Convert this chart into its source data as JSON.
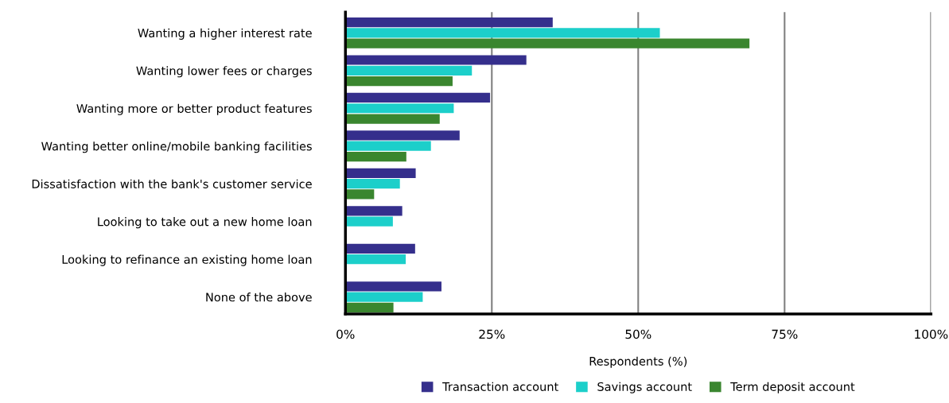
{
  "chart_data": {
    "type": "bar",
    "orientation": "horizontal",
    "xlabel": "Respondents (%)",
    "categories": [
      "Wanting a higher interest rate",
      "Wanting lower fees or charges",
      "Wanting more or better product features",
      "Wanting better online/mobile banking facilities",
      "Dissatisfaction with the bank's customer service",
      "Looking to take out a new home loan",
      "Looking to refinance an existing home loan",
      "None of the above"
    ],
    "series": [
      {
        "name": "Transaction account",
        "color": "#352f8c",
        "values": [
          35.4,
          30.9,
          24.7,
          19.5,
          12.0,
          9.7,
          11.9,
          16.4
        ]
      },
      {
        "name": "Savings account",
        "color": "#1ccfca",
        "values": [
          53.7,
          21.6,
          18.5,
          14.6,
          9.3,
          8.1,
          10.3,
          13.2
        ]
      },
      {
        "name": "Term deposit account",
        "color": "#3a862f",
        "values": [
          69.0,
          18.3,
          16.1,
          10.4,
          4.9,
          null,
          null,
          8.2
        ]
      }
    ],
    "xlim": [
      0,
      100
    ],
    "xticks": [
      {
        "value": 0,
        "label": "0%"
      },
      {
        "value": 25,
        "label": "25%"
      },
      {
        "value": 50,
        "label": "50%"
      },
      {
        "value": 75,
        "label": "75%"
      },
      {
        "value": 100,
        "label": "100%"
      }
    ],
    "grid": "x",
    "legend": "bottom"
  }
}
